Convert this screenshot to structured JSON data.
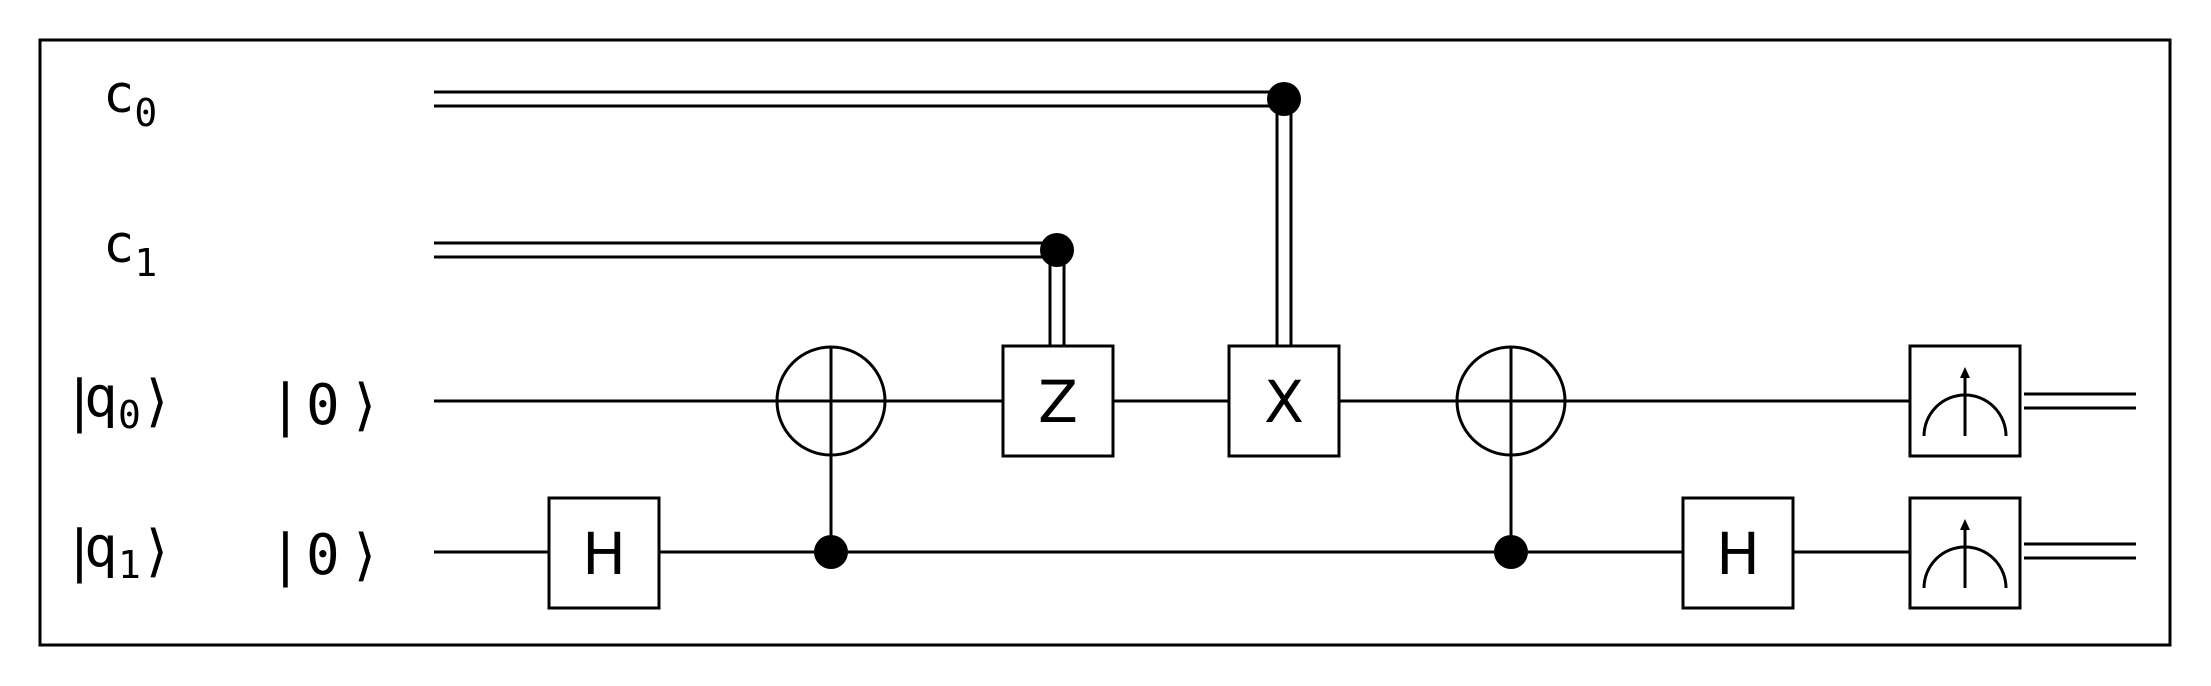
{
  "wires": {
    "classical": [
      {
        "label": "c",
        "subscript": "0"
      },
      {
        "label": "c",
        "subscript": "1"
      }
    ],
    "quantum": [
      {
        "label": "q",
        "subscript": "0",
        "initial_state": "0"
      },
      {
        "label": "q",
        "subscript": "1",
        "initial_state": "0"
      }
    ]
  },
  "gates": {
    "h_first": "H",
    "cz": "Z",
    "cx": "X",
    "h_second": "H"
  },
  "colors": {
    "line": "#000000",
    "background": "#ffffff"
  }
}
